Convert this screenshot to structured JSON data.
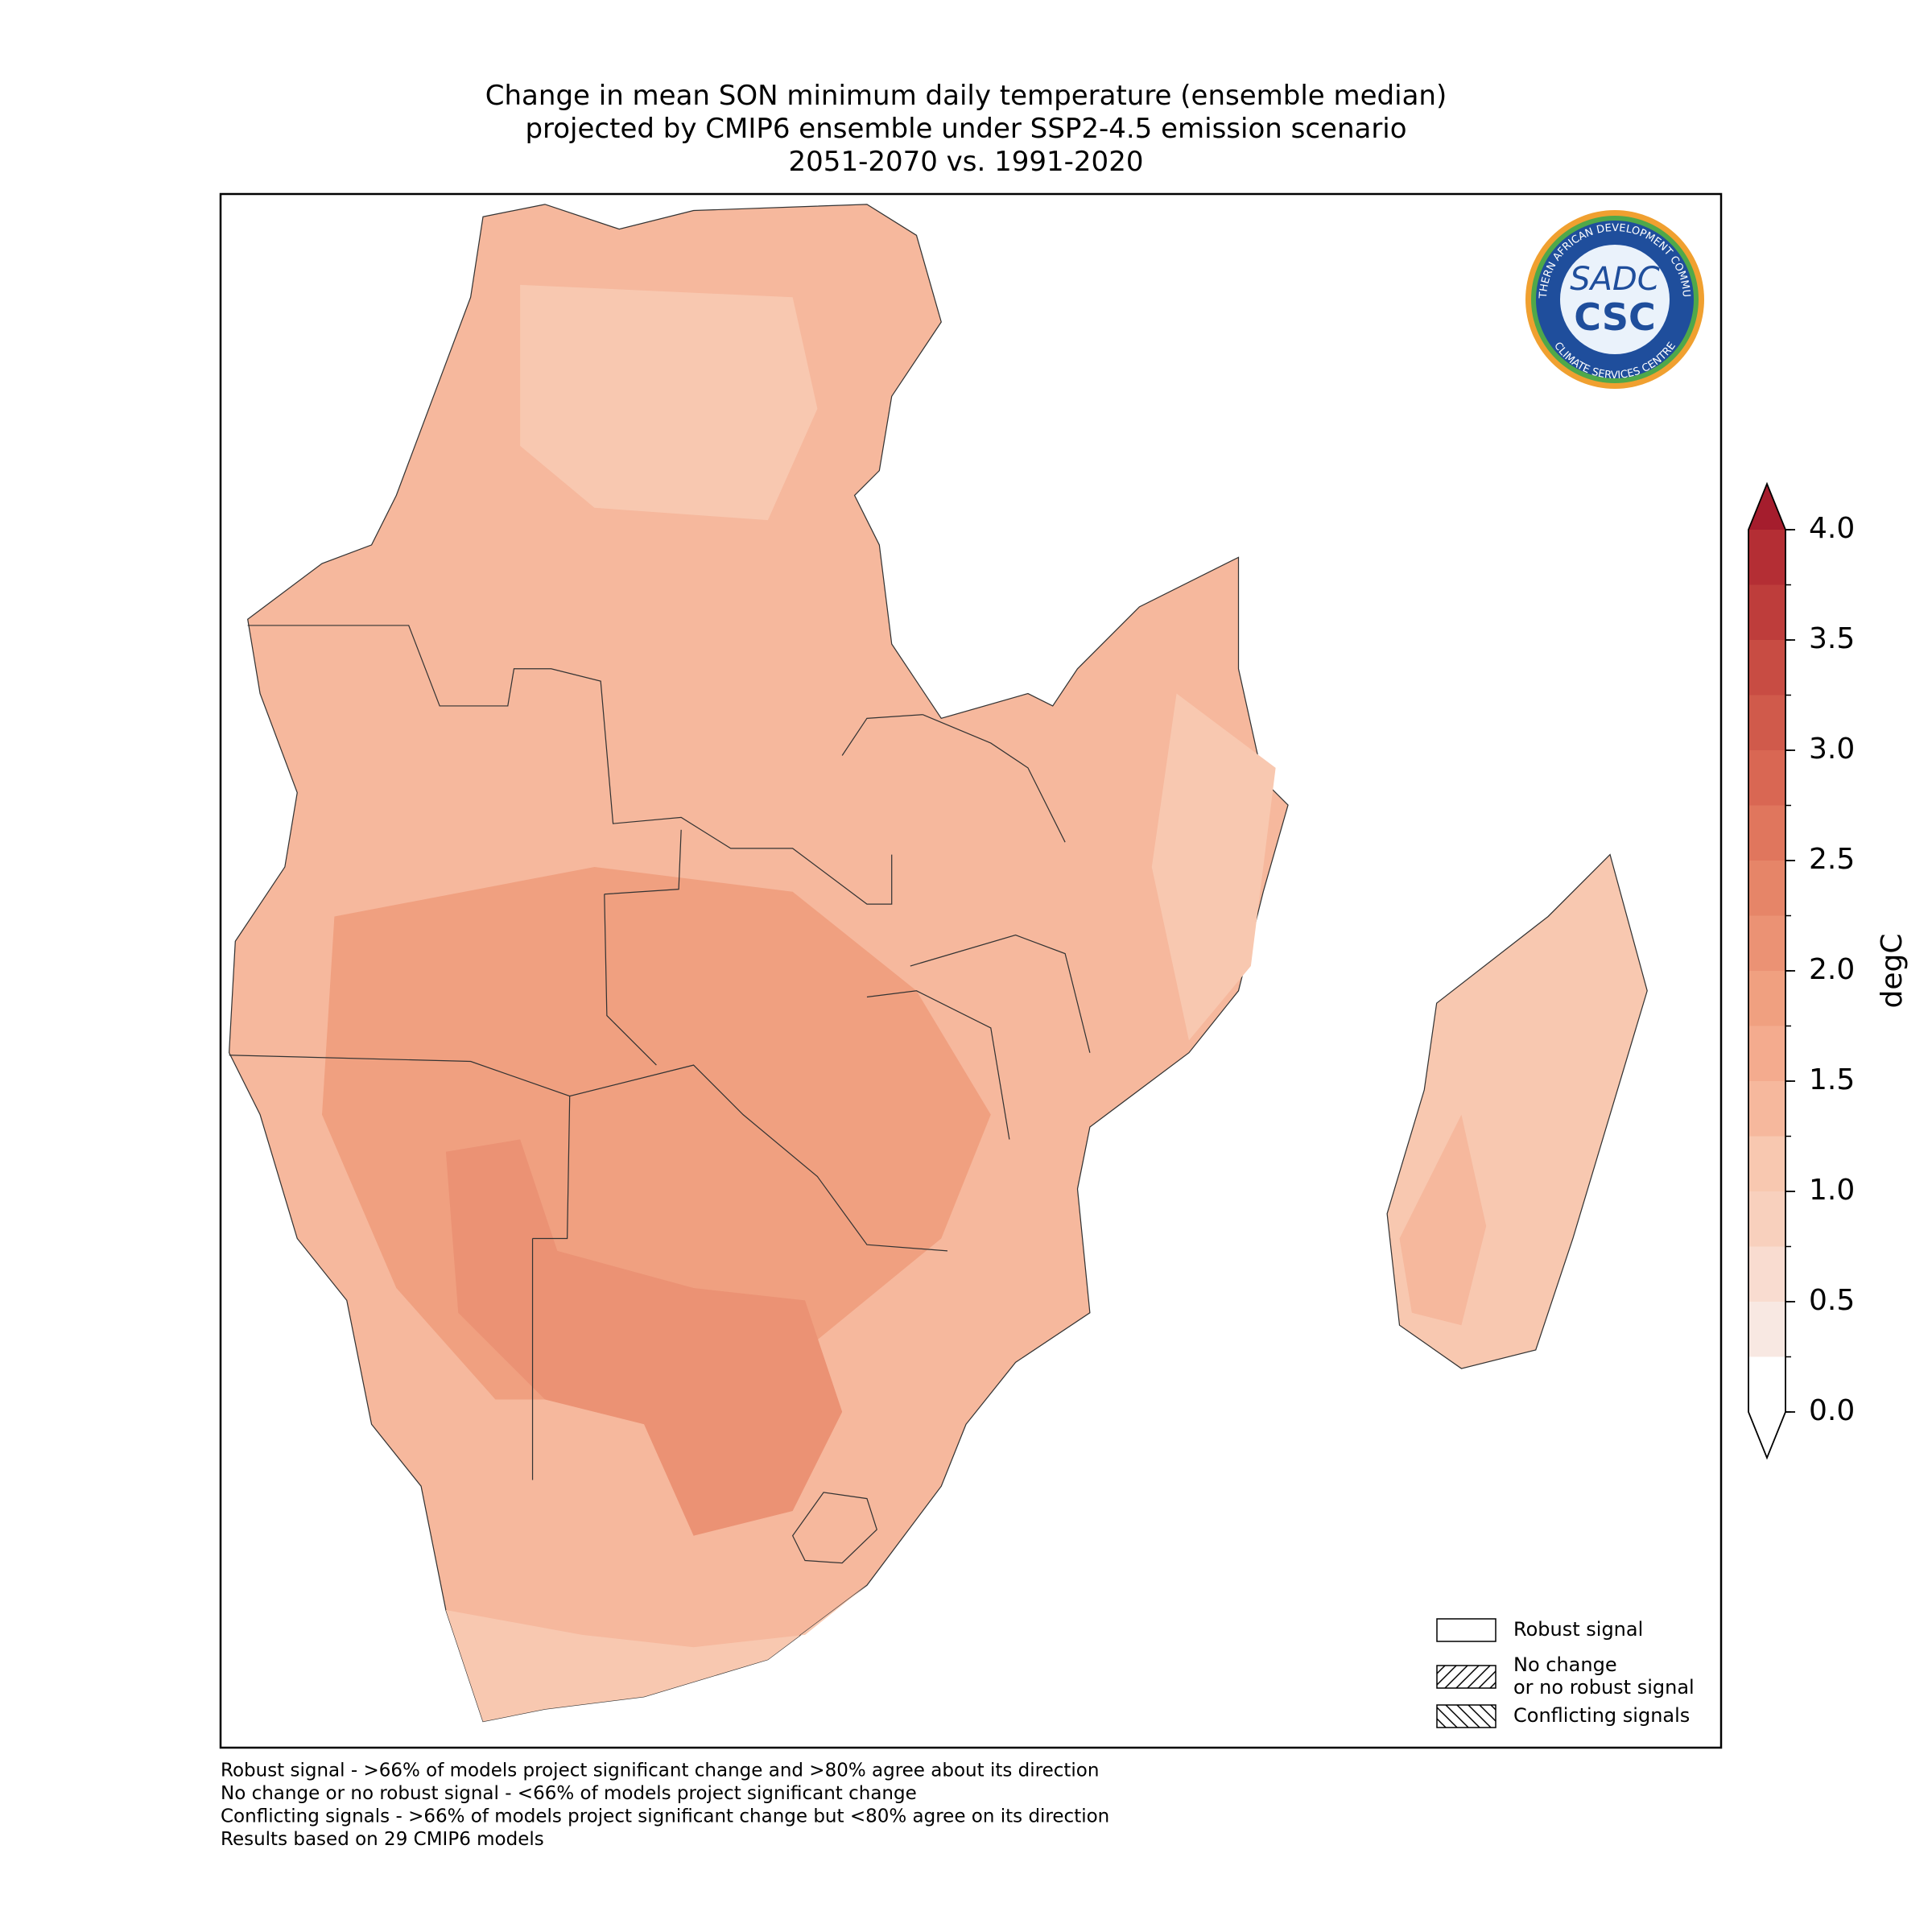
{
  "title": [
    "Change in mean SON minimum daily temperature (ensemble median)",
    "projected by CMIP6 ensemble under SSP2-4.5 emission scenario",
    "2051-2070 vs. 1991-2020"
  ],
  "logo": {
    "ring_top": "SOUTHERN AFRICAN DEVELOPMENT COMMUNITY",
    "ring_bottom": "CLIMATE SERVICES CENTRE",
    "upper": "SADC",
    "lower": "CSC"
  },
  "colorbar": {
    "label": "degC",
    "levels": [
      0,
      0.25,
      0.5,
      0.75,
      1.0,
      1.25,
      1.5,
      1.75,
      2.0,
      2.25,
      2.5,
      2.75,
      3.0,
      3.25,
      3.5,
      3.75,
      4.0
    ],
    "colors": [
      "#ffffff",
      "#f8e8e2",
      "#f9dcd0",
      "#f8d0bd",
      "#f8c8b0",
      "#f6b89d",
      "#f4ab8e",
      "#f0a080",
      "#eb9274",
      "#e68568",
      "#e0765d",
      "#d96753",
      "#d05a4b",
      "#c84c43",
      "#be3d3b",
      "#b42e34"
    ],
    "extend_colors": {
      "min": "#ffffff",
      "max": "#a51d2d"
    },
    "ticks": [
      {
        "value": 0,
        "label": "0.0"
      },
      {
        "value": 0.5,
        "label": "0.5"
      },
      {
        "value": 1.0,
        "label": "1.0"
      },
      {
        "value": 1.5,
        "label": "1.5"
      },
      {
        "value": 2.0,
        "label": "2.0"
      },
      {
        "value": 2.5,
        "label": "2.5"
      },
      {
        "value": 3.0,
        "label": "3.0"
      },
      {
        "value": 3.5,
        "label": "3.5"
      },
      {
        "value": 4.0,
        "label": "4.0"
      }
    ]
  },
  "legend": [
    {
      "label": [
        "Robust signal"
      ],
      "hatch": "none"
    },
    {
      "label": [
        "No change",
        "or no robust signal"
      ],
      "hatch": "/"
    },
    {
      "label": [
        "Conflicting signals"
      ],
      "hatch": "\\"
    }
  ],
  "notes": [
    "Robust signal - >66% of models project significant change and >80% agree about its direction",
    "No change or no robust signal - <66% of models project significant change",
    "Conflicting signals - >66% of models project significant change but <80% agree on its direction",
    "Results based on 29 CMIP6 models"
  ]
}
